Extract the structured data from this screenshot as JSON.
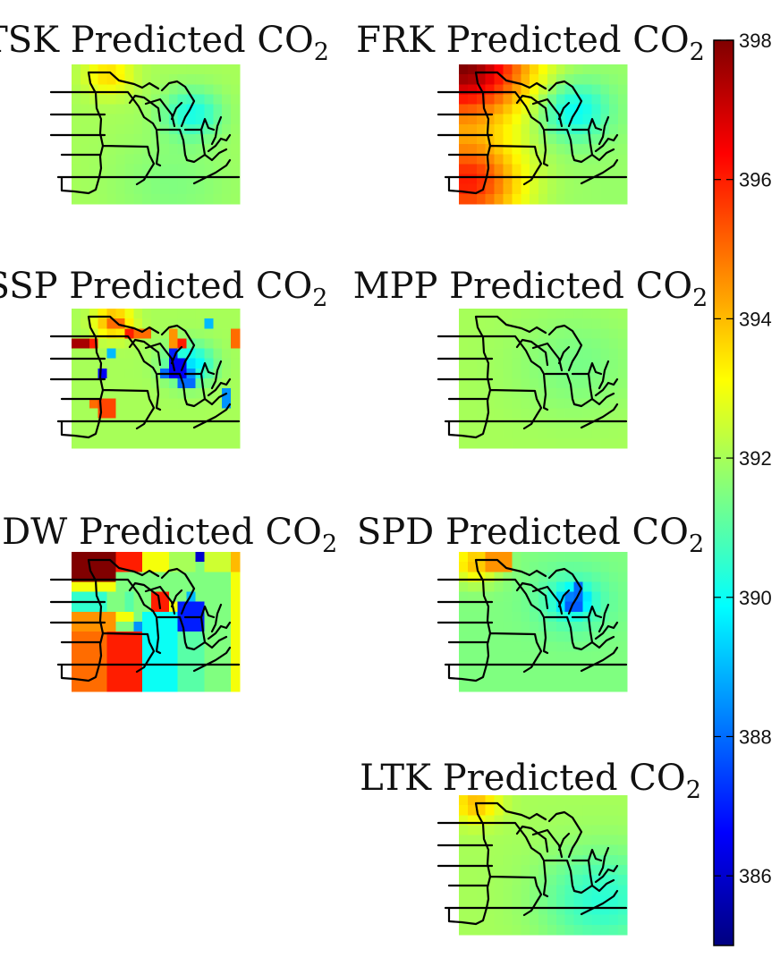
{
  "chart_data": {
    "type": "heatmap",
    "colormap": "jet",
    "colorbar": {
      "min": 385,
      "max": 398,
      "ticks": [
        398,
        396,
        394,
        392,
        390,
        388,
        386
      ],
      "tick_labels": [
        "398",
        "396",
        "394",
        "392",
        "390",
        "388",
        "386"
      ]
    },
    "panels": [
      {
        "id": "TSK",
        "title": "TSK Predicted CO",
        "subscript": "2",
        "baseline": 392,
        "min_feature": 390.2,
        "features": [
          {
            "u": 0.22,
            "v": 0.08,
            "d": 1.6,
            "s": 0.1
          },
          {
            "u": 0.72,
            "v": 0.35,
            "d": -1.8,
            "s": 0.12
          },
          {
            "u": 0.6,
            "v": 0.85,
            "d": -0.5,
            "s": 0.25
          }
        ],
        "patches": []
      },
      {
        "id": "FRK",
        "title": "FRK Predicted CO",
        "subscript": "2",
        "baseline": 391.8,
        "min_feature": 389.8,
        "features": [
          {
            "u": 0.02,
            "v": 0.0,
            "d": 6.2,
            "s": 0.28
          },
          {
            "u": 0.05,
            "v": 0.85,
            "d": 4.2,
            "s": 0.22
          },
          {
            "u": 0.68,
            "v": 0.33,
            "d": -2.0,
            "s": 0.15
          }
        ],
        "patches": []
      },
      {
        "id": "SSP",
        "title": "SSP Predicted CO",
        "subscript": "2",
        "baseline": 392,
        "min_feature": 385.5,
        "features": [
          {
            "u": 0.25,
            "v": 0.1,
            "d": 2.5,
            "s": 0.08
          },
          {
            "u": 0.7,
            "v": 0.4,
            "d": -2.5,
            "s": 0.1
          }
        ],
        "patches": [
          {
            "c": [
              0,
              1
            ],
            "r": [
              3,
              3
            ],
            "v": 397.5
          },
          {
            "c": [
              2,
              2
            ],
            "r": [
              3,
              3
            ],
            "v": 396
          },
          {
            "c": [
              6,
              6
            ],
            "r": [
              2,
              2
            ],
            "v": 396
          },
          {
            "c": [
              4,
              5
            ],
            "r": [
              1,
              1
            ],
            "v": 395
          },
          {
            "c": [
              7,
              8
            ],
            "r": [
              2,
              2
            ],
            "v": 395
          },
          {
            "c": [
              3,
              3
            ],
            "r": [
              6,
              6
            ],
            "v": 386.5
          },
          {
            "c": [
              4,
              4
            ],
            "r": [
              4,
              4
            ],
            "v": 389
          },
          {
            "c": [
              11,
              11
            ],
            "r": [
              2,
              3
            ],
            "v": 394.5
          },
          {
            "c": [
              12,
              12
            ],
            "r": [
              3,
              3
            ],
            "v": 396
          },
          {
            "c": [
              11,
              11
            ],
            "r": [
              4,
              4
            ],
            "v": 387
          },
          {
            "c": [
              11,
              12
            ],
            "r": [
              5,
              6
            ],
            "v": 386.5
          },
          {
            "c": [
              10,
              10
            ],
            "r": [
              6,
              6
            ],
            "v": 388
          },
          {
            "c": [
              13,
              13
            ],
            "r": [
              6,
              7
            ],
            "v": 388.5
          },
          {
            "c": [
              12,
              13
            ],
            "r": [
              7,
              7
            ],
            "v": 388
          },
          {
            "c": [
              2,
              2
            ],
            "r": [
              9,
              9
            ],
            "v": 395
          },
          {
            "c": [
              3,
              4
            ],
            "r": [
              9,
              10
            ],
            "v": 395.5
          },
          {
            "c": [
              18,
              18
            ],
            "r": [
              2,
              3
            ],
            "v": 395
          },
          {
            "c": [
              17,
              17
            ],
            "r": [
              8,
              9
            ],
            "v": 388.5
          },
          {
            "c": [
              15,
              15
            ],
            "r": [
              1,
              1
            ],
            "v": 389
          }
        ]
      },
      {
        "id": "MPP",
        "title": "MPP Predicted CO",
        "subscript": "2",
        "baseline": 392,
        "min_feature": 391.4,
        "features": [
          {
            "u": 0.7,
            "v": 0.4,
            "d": -0.6,
            "s": 0.25
          }
        ],
        "patches": []
      },
      {
        "id": "EDW",
        "title": "EDW Predicted CO",
        "subscript": "2",
        "baseline": 391.5,
        "min_feature": 386,
        "features": [],
        "patches": [
          {
            "c": [
              0,
              4
            ],
            "r": [
              0,
              2
            ],
            "v": 398
          },
          {
            "c": [
              5,
              7
            ],
            "r": [
              0,
              1
            ],
            "v": 396
          },
          {
            "c": [
              8,
              10
            ],
            "r": [
              0,
              1
            ],
            "v": 393
          },
          {
            "c": [
              11,
              13
            ],
            "r": [
              0,
              1
            ],
            "v": 392
          },
          {
            "c": [
              14,
              14
            ],
            "r": [
              0,
              0
            ],
            "v": 386
          },
          {
            "c": [
              15,
              17
            ],
            "r": [
              0,
              1
            ],
            "v": 392.5
          },
          {
            "c": [
              18,
              18
            ],
            "r": [
              0,
              1
            ],
            "v": 394
          },
          {
            "c": [
              0,
              4
            ],
            "r": [
              3,
              3
            ],
            "v": 393
          },
          {
            "c": [
              0,
              3
            ],
            "r": [
              4,
              5
            ],
            "v": 390.5
          },
          {
            "c": [
              0,
              4
            ],
            "r": [
              6,
              7
            ],
            "v": 394.5
          },
          {
            "c": [
              0,
              3
            ],
            "r": [
              8,
              13
            ],
            "v": 395
          },
          {
            "c": [
              4,
              7
            ],
            "r": [
              8,
              13
            ],
            "v": 396
          },
          {
            "c": [
              5,
              6
            ],
            "r": [
              6,
              6
            ],
            "v": 393
          },
          {
            "c": [
              6,
              6
            ],
            "r": [
              4,
              5
            ],
            "v": 391
          },
          {
            "c": [
              7,
              7
            ],
            "r": [
              7,
              7
            ],
            "v": 388.5
          },
          {
            "c": [
              9,
              10
            ],
            "r": [
              4,
              5
            ],
            "v": 396
          },
          {
            "c": [
              11,
              11
            ],
            "r": [
              5,
              5
            ],
            "v": 393
          },
          {
            "c": [
              12,
              14
            ],
            "r": [
              5,
              7
            ],
            "v": 387
          },
          {
            "c": [
              13,
              13
            ],
            "r": [
              4,
              4
            ],
            "v": 389
          },
          {
            "c": [
              8,
              11
            ],
            "r": [
              6,
              13
            ],
            "v": 390
          },
          {
            "c": [
              12,
              14
            ],
            "r": [
              8,
              13
            ],
            "v": 391
          },
          {
            "c": [
              15,
              17
            ],
            "r": [
              3,
              13
            ],
            "v": 391.5
          },
          {
            "c": [
              18,
              18
            ],
            "r": [
              2,
              13
            ],
            "v": 393
          }
        ]
      },
      {
        "id": "SPD",
        "title": "SPD Predicted CO",
        "subscript": "2",
        "baseline": 391.5,
        "min_feature": 387.8,
        "features": [
          {
            "u": 0.1,
            "v": 0.08,
            "d": 2.5,
            "s": 0.1
          },
          {
            "u": 0.68,
            "v": 0.35,
            "d": -2.5,
            "s": 0.06
          },
          {
            "u": 0.68,
            "v": 0.35,
            "d": -1.2,
            "s": 0.15
          }
        ],
        "patches": [
          {
            "c": [
              3,
              5
            ],
            "r": [
              0,
              1
            ],
            "v": 394.5
          },
          {
            "c": [
              13,
              13
            ],
            "r": [
              3,
              4
            ],
            "v": 388
          },
          {
            "c": [
              12,
              13
            ],
            "r": [
              5,
              5
            ],
            "v": 387.8
          }
        ]
      },
      {
        "id": "LTK",
        "title": "LTK Predicted CO",
        "subscript": "2",
        "baseline": 392,
        "min_feature": 390.3,
        "features": [
          {
            "u": 0.1,
            "v": 0.06,
            "d": 2.0,
            "s": 0.1
          },
          {
            "u": 0.85,
            "v": 0.75,
            "d": -1.6,
            "s": 0.25
          }
        ],
        "patches": []
      }
    ]
  }
}
